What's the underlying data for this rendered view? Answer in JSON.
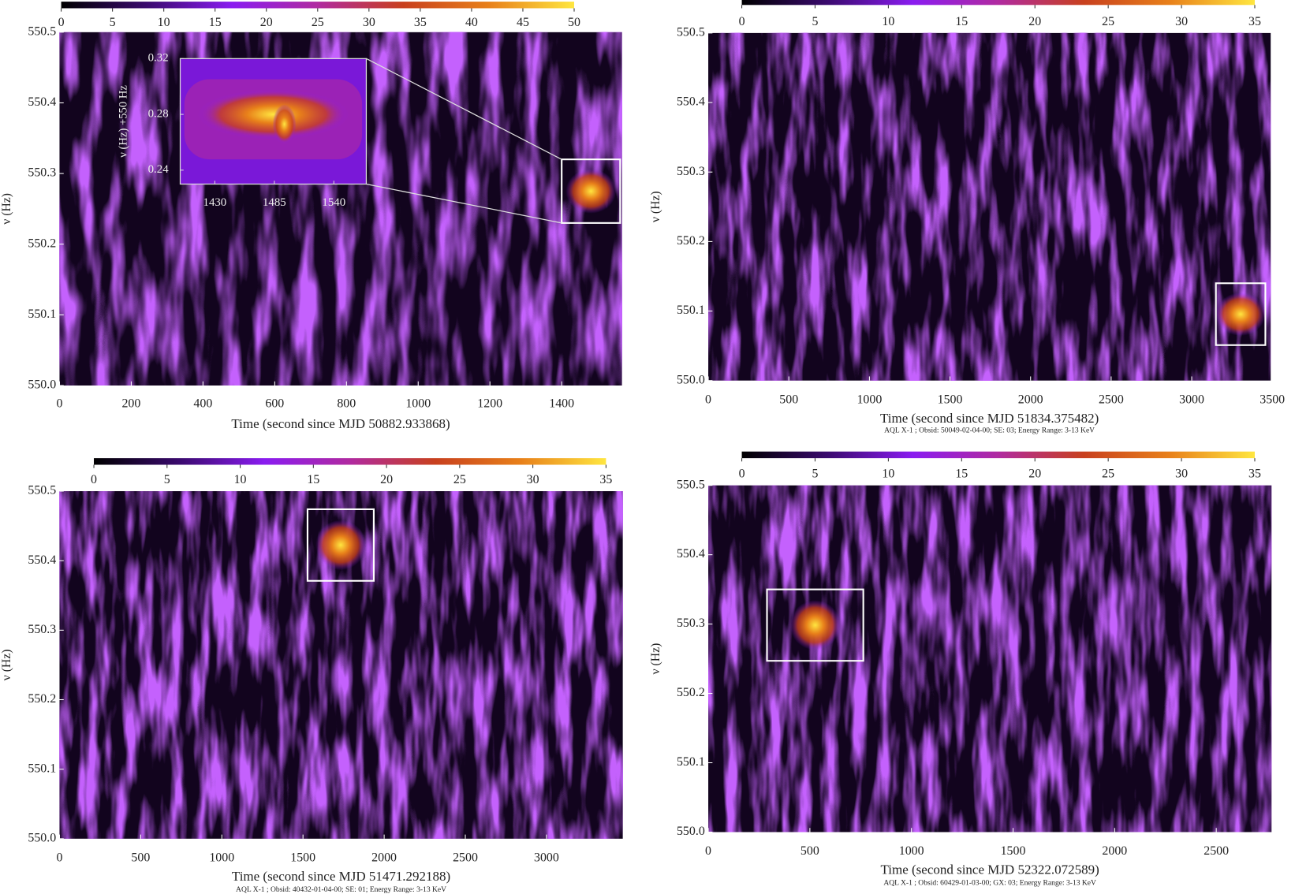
{
  "chart_data": [
    {
      "type": "heatmap",
      "xlabel": "Time (second since MJD 50882.933868)",
      "ylabel": "ν (Hz)",
      "xlim": [
        0,
        1568
      ],
      "xticks": [
        0,
        200,
        400,
        600,
        800,
        1000,
        1200,
        1400
      ],
      "ylim": [
        550,
        550.5
      ],
      "yticks": [
        {
          "value": 550,
          "label": "550.0"
        },
        550.1,
        550.2,
        550.3,
        550.4,
        550.5
      ],
      "clim": [
        0,
        50
      ],
      "cticks": [
        0,
        5,
        10,
        15,
        20,
        25,
        30,
        35,
        40,
        45,
        50
      ],
      "colormap": [
        "#000000",
        "#3a0a6e",
        "#8a1cf0",
        "#b02aa0",
        "#c8401e",
        "#e8801a",
        "#ffe640"
      ],
      "box": {
        "x": [
          1400,
          1563
        ],
        "y": [
          550.23,
          550.32
        ]
      },
      "inset": {
        "ylabel": "ν (Hz) +550 Hz",
        "xlim": [
          1398,
          1570
        ],
        "xticks": [
          1430,
          1485,
          1540
        ],
        "ylim": [
          0.23,
          0.32
        ],
        "yticks": [
          0.24,
          0.28,
          0.32
        ]
      }
    },
    {
      "type": "heatmap",
      "xlabel": "Time (second since MJD 51834.375482)",
      "ylabel": "ν (Hz)",
      "footnote": "AQL X-1 ; Obsid: 50049-02-04-00; SE: 03; Energy Range: 3-13 KeV",
      "xlim": [
        0,
        3490
      ],
      "xticks": [
        0,
        500,
        1000,
        1500,
        2000,
        2500,
        3000,
        3500
      ],
      "ylim": [
        550,
        550.5
      ],
      "yticks": [
        {
          "value": 550,
          "label": "550.0"
        },
        550.1,
        550.2,
        550.3,
        550.4,
        550.5
      ],
      "clim": [
        0,
        35
      ],
      "cticks": [
        0,
        5,
        10,
        15,
        20,
        25,
        30,
        35
      ],
      "colormap": [
        "#000000",
        "#3a0a6e",
        "#8a1cf0",
        "#b02aa0",
        "#c8401e",
        "#e8801a",
        "#ffe640"
      ],
      "box": {
        "x": [
          3150,
          3457
        ],
        "y": [
          550.051,
          550.14
        ]
      }
    },
    {
      "type": "heatmap",
      "xlabel": "Time (second since MJD 51471.292188)",
      "ylabel": "ν (Hz)",
      "footnote": "AQL X-1 ; Obsid: 40432-01-04-00; SE: 01; Energy Range: 3-13 KeV",
      "xlim": [
        0,
        3470
      ],
      "xticks": [
        0,
        500,
        1000,
        1500,
        2000,
        2500,
        3000
      ],
      "ylim": [
        550,
        550.5
      ],
      "yticks": [
        {
          "value": 550,
          "label": "550.0"
        },
        550.1,
        550.2,
        550.3,
        550.4,
        550.5
      ],
      "clim": [
        0,
        35
      ],
      "cticks": [
        0,
        5,
        10,
        15,
        20,
        25,
        30,
        35
      ],
      "colormap": [
        "#000000",
        "#3a0a6e",
        "#8a1cf0",
        "#b02aa0",
        "#c8401e",
        "#e8801a",
        "#ffe640"
      ],
      "box": {
        "x": [
          1528,
          1936
        ],
        "y": [
          550.371,
          550.474
        ]
      }
    },
    {
      "type": "heatmap",
      "xlabel": "Time (second since MJD 52322.072589)",
      "ylabel": "ν (Hz)",
      "footnote": "AQL X-1 ; Obsid: 60429-01-03-00; GX: 03; Energy Range: 3-13 KeV",
      "xlim": [
        0,
        2772
      ],
      "xticks": [
        0,
        500,
        1000,
        1500,
        2000,
        2500
      ],
      "ylim": [
        550,
        550.5
      ],
      "yticks": [
        {
          "value": 550,
          "label": "550.0"
        },
        550.1,
        550.2,
        550.3,
        550.4,
        550.5
      ],
      "clim": [
        0,
        35
      ],
      "cticks": [
        0,
        5,
        10,
        15,
        20,
        25,
        30,
        35
      ],
      "colormap": [
        "#000000",
        "#3a0a6e",
        "#8a1cf0",
        "#b02aa0",
        "#c8401e",
        "#e8801a",
        "#ffe640"
      ],
      "box": {
        "x": [
          289,
          763
        ],
        "y": [
          550.247,
          550.35
        ]
      }
    }
  ]
}
